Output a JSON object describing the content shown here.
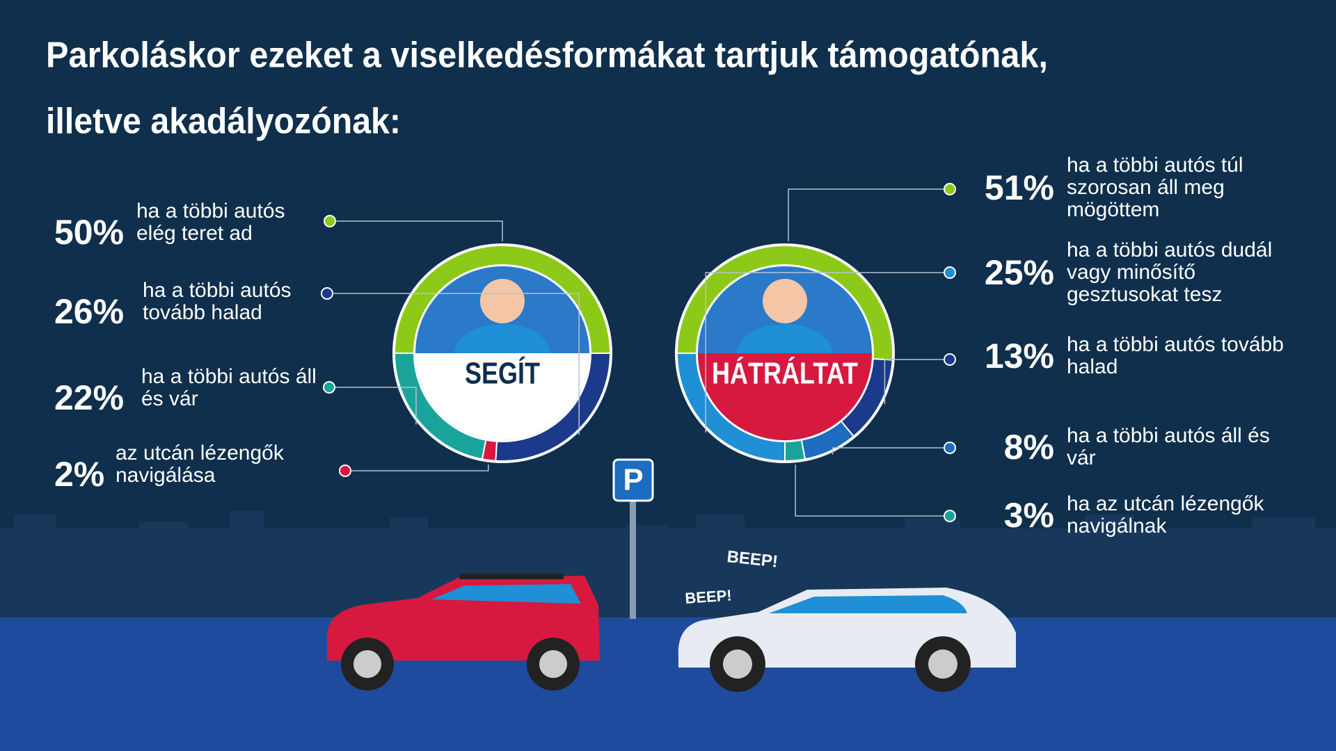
{
  "title_lines": [
    "Parkoláskor ezeket a viselkedésformákat tartjuk támogatónak,",
    "illetve akadályozónak:"
  ],
  "chart_data": [
    {
      "type": "donut",
      "title": "SEGÍT",
      "categories": [
        "ha a többi autós elég teret ad",
        "ha a többi autós tovább halad",
        "ha a többi autós áll és vár",
        "az utcán lézengők navigálása"
      ],
      "values": [
        50,
        26,
        22,
        2
      ],
      "value_labels": [
        "50%",
        "26%",
        "22%",
        "2%"
      ],
      "colors": [
        "#8dc919",
        "#1b3a8c",
        "#1aa39a",
        "#d7193f"
      ]
    },
    {
      "type": "donut",
      "title": "HÁTRÁLTAT",
      "categories": [
        "ha a többi autós túl szorosan áll meg mögöttem",
        "ha a többi autós dudál vagy minősítő gesztusokat tesz",
        "ha a többi autós tovább halad",
        "ha a többi autós áll és vár",
        "ha az utcán lézengők navigálnak"
      ],
      "values": [
        51,
        25,
        13,
        8,
        3
      ],
      "value_labels": [
        "51%",
        "25%",
        "13%",
        "8%",
        "3%"
      ],
      "colors": [
        "#8dc919",
        "#1f8fd6",
        "#1b3a8c",
        "#1c6cc0",
        "#1aa39a"
      ]
    }
  ],
  "illustration": {
    "parking_sign": "P",
    "sounds": [
      "BEEP!",
      "BEEP!"
    ]
  }
}
